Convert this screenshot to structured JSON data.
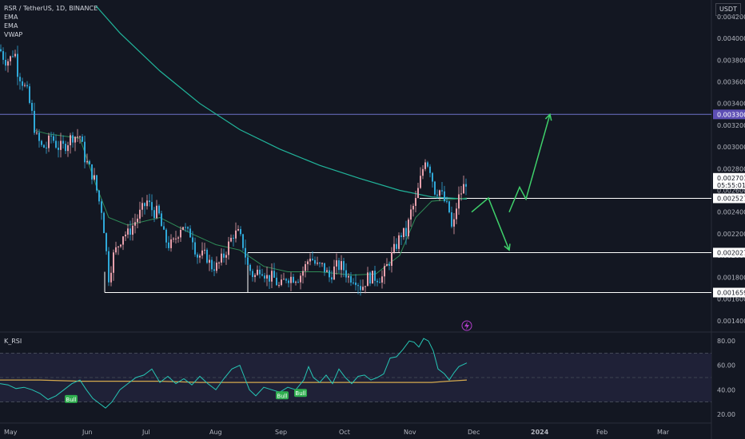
{
  "header": {
    "symbol_line": "RSR / TetherUS, 1D, BINANCE",
    "indicators": [
      "EMA",
      "EMA",
      "VWAP"
    ],
    "rsi_label": "K_RSI",
    "unit": "USDT"
  },
  "colors": {
    "background": "#131722",
    "bull": "#e8a0ac",
    "bear": "#2fa8d8",
    "ema_long": "#21b59b",
    "ema_short": "#2e8b57",
    "rsi_line": "#26c6b5",
    "rsi_ma": "#d4a94e",
    "arrow": "#3fd16b",
    "level_line": "#ffffff",
    "highlight_line": "#6c72c7",
    "highlight_tag": "#5e4fb5"
  },
  "chart_data": [
    {
      "type": "candlestick",
      "pair": "RSR / TetherUS",
      "interval": "1D",
      "exchange": "BINANCE",
      "x_tick_labels": [
        "May",
        "Jun",
        "Jul",
        "Aug",
        "Sep",
        "Oct",
        "Nov",
        "Dec",
        "2024",
        "Feb",
        "Mar"
      ],
      "y_tick_labels": [
        "0.004200",
        "0.004000",
        "0.003800",
        "0.003600",
        "0.003400",
        "0.003200",
        "0.003000",
        "0.002800",
        "0.002600",
        "0.002400",
        "0.002200",
        "0.002000",
        "0.001800",
        "0.001600",
        "0.001400"
      ],
      "ylim": [
        0.00131,
        0.00428
      ],
      "price_path": [
        [
          0,
          0.0039
        ],
        [
          6,
          0.0038
        ],
        [
          12,
          0.0038
        ],
        [
          18,
          0.0039
        ],
        [
          22,
          0.0037
        ],
        [
          28,
          0.0036
        ],
        [
          34,
          0.0035
        ],
        [
          40,
          0.0033
        ],
        [
          45,
          0.0031
        ],
        [
          52,
          0.003
        ],
        [
          58,
          0.003
        ],
        [
          64,
          0.0031
        ],
        [
          72,
          0.003
        ],
        [
          80,
          0.003
        ],
        [
          90,
          0.0031
        ],
        [
          100,
          0.0031
        ],
        [
          106,
          0.0029
        ],
        [
          112,
          0.0028
        ],
        [
          118,
          0.0027
        ],
        [
          124,
          0.0025
        ],
        [
          128,
          0.0024
        ],
        [
          132,
          0.0021
        ],
        [
          136,
          0.0018
        ],
        [
          142,
          0.002
        ],
        [
          148,
          0.0021
        ],
        [
          154,
          0.0022
        ],
        [
          160,
          0.0022
        ],
        [
          168,
          0.0023
        ],
        [
          176,
          0.0024
        ],
        [
          184,
          0.0025
        ],
        [
          192,
          0.0024
        ],
        [
          198,
          0.0024
        ],
        [
          204,
          0.0022
        ],
        [
          210,
          0.0021
        ],
        [
          216,
          0.0021
        ],
        [
          222,
          0.0022
        ],
        [
          228,
          0.0023
        ],
        [
          234,
          0.0022
        ],
        [
          240,
          0.0022
        ],
        [
          246,
          0.002
        ],
        [
          252,
          0.002
        ],
        [
          258,
          0.002
        ],
        [
          264,
          0.0019
        ],
        [
          272,
          0.0019
        ],
        [
          280,
          0.002
        ],
        [
          286,
          0.0021
        ],
        [
          292,
          0.0022
        ],
        [
          298,
          0.0022
        ],
        [
          304,
          0.0021
        ],
        [
          310,
          0.0019
        ],
        [
          318,
          0.0018
        ],
        [
          326,
          0.0019
        ],
        [
          334,
          0.0018
        ],
        [
          342,
          0.0018
        ],
        [
          350,
          0.0017
        ],
        [
          358,
          0.0018
        ],
        [
          366,
          0.0018
        ],
        [
          374,
          0.0018
        ],
        [
          382,
          0.0019
        ],
        [
          388,
          0.002
        ],
        [
          396,
          0.0019
        ],
        [
          404,
          0.0019
        ],
        [
          412,
          0.0018
        ],
        [
          420,
          0.0019
        ],
        [
          428,
          0.0019
        ],
        [
          436,
          0.0018
        ],
        [
          444,
          0.0018
        ],
        [
          452,
          0.0017
        ],
        [
          460,
          0.0018
        ],
        [
          466,
          0.0018
        ],
        [
          472,
          0.0018
        ],
        [
          478,
          0.0018
        ],
        [
          484,
          0.0019
        ],
        [
          490,
          0.002
        ],
        [
          496,
          0.0021
        ],
        [
          502,
          0.0022
        ],
        [
          508,
          0.0022
        ],
        [
          514,
          0.0024
        ],
        [
          520,
          0.0025
        ],
        [
          526,
          0.0027
        ],
        [
          532,
          0.0029
        ],
        [
          538,
          0.0028
        ],
        [
          544,
          0.0026
        ],
        [
          550,
          0.0026
        ],
        [
          556,
          0.0025
        ],
        [
          562,
          0.0024
        ],
        [
          566,
          0.0022
        ],
        [
          572,
          0.0025
        ],
        [
          578,
          0.0026
        ],
        [
          584,
          0.0027
        ]
      ],
      "ema_long_path": [
        [
          120,
          0.0043
        ],
        [
          150,
          0.00405
        ],
        [
          200,
          0.0037
        ],
        [
          250,
          0.0034
        ],
        [
          300,
          0.00316
        ],
        [
          350,
          0.00298
        ],
        [
          400,
          0.00283
        ],
        [
          450,
          0.00271
        ],
        [
          500,
          0.0026
        ],
        [
          540,
          0.00254
        ],
        [
          584,
          0.00252
        ]
      ],
      "ema_short_path": [
        [
          44,
          0.00315
        ],
        [
          60,
          0.00312
        ],
        [
          80,
          0.0031
        ],
        [
          100,
          0.00308
        ],
        [
          120,
          0.00265
        ],
        [
          136,
          0.00235
        ],
        [
          160,
          0.00228
        ],
        [
          200,
          0.00235
        ],
        [
          240,
          0.0022
        ],
        [
          270,
          0.0021
        ],
        [
          300,
          0.00205
        ],
        [
          330,
          0.0019
        ],
        [
          360,
          0.00185
        ],
        [
          400,
          0.00185
        ],
        [
          440,
          0.00182
        ],
        [
          470,
          0.00183
        ],
        [
          500,
          0.002
        ],
        [
          520,
          0.00235
        ],
        [
          540,
          0.0025
        ],
        [
          584,
          0.00253
        ]
      ],
      "horizontal_levels": [
        {
          "value": 0.0033,
          "label": "0.003300",
          "style": "highlight"
        },
        {
          "value": 0.002527,
          "label": "0.002527",
          "style": "level"
        },
        {
          "value": 0.002027,
          "label": "0.002027",
          "style": "level"
        },
        {
          "value": 0.001659,
          "label": "0.001659",
          "style": "level"
        }
      ],
      "current_price": {
        "value": 0.002701,
        "label": "0.002701",
        "countdown": "05:55:01"
      },
      "projection_arrows": [
        {
          "path": [
            [
              590,
              0.0024
            ],
            [
              611,
              0.00253
            ],
            [
              637,
              0.00205
            ]
          ],
          "head": "down"
        },
        {
          "path": [
            [
              637,
              0.0024
            ],
            [
              650,
              0.00263
            ],
            [
              658,
              0.00252
            ],
            [
              688,
              0.0033
            ]
          ],
          "head": "up"
        }
      ]
    },
    {
      "type": "line",
      "title": "K_RSI",
      "y_tick_labels": [
        "80.00",
        "60.00",
        "40.00",
        "20.00"
      ],
      "ylim": [
        14,
        86
      ],
      "levels": [
        70,
        50,
        30
      ],
      "rsi_path": [
        [
          0,
          45
        ],
        [
          10,
          44
        ],
        [
          20,
          41
        ],
        [
          30,
          42
        ],
        [
          40,
          40
        ],
        [
          50,
          37
        ],
        [
          60,
          32
        ],
        [
          70,
          35
        ],
        [
          80,
          40
        ],
        [
          90,
          45
        ],
        [
          100,
          48
        ],
        [
          108,
          40
        ],
        [
          116,
          33
        ],
        [
          124,
          29
        ],
        [
          132,
          25
        ],
        [
          140,
          30
        ],
        [
          150,
          40
        ],
        [
          160,
          45
        ],
        [
          170,
          50
        ],
        [
          180,
          52
        ],
        [
          190,
          57
        ],
        [
          200,
          46
        ],
        [
          210,
          51
        ],
        [
          220,
          45
        ],
        [
          230,
          49
        ],
        [
          240,
          44
        ],
        [
          250,
          51
        ],
        [
          260,
          45
        ],
        [
          270,
          40
        ],
        [
          280,
          49
        ],
        [
          290,
          57
        ],
        [
          300,
          60
        ],
        [
          306,
          50
        ],
        [
          312,
          40
        ],
        [
          320,
          35
        ],
        [
          330,
          42
        ],
        [
          340,
          40
        ],
        [
          350,
          38
        ],
        [
          360,
          42
        ],
        [
          370,
          40
        ],
        [
          380,
          48
        ],
        [
          386,
          59
        ],
        [
          392,
          50
        ],
        [
          400,
          46
        ],
        [
          408,
          52
        ],
        [
          416,
          45
        ],
        [
          424,
          57
        ],
        [
          432,
          50
        ],
        [
          440,
          45
        ],
        [
          448,
          51
        ],
        [
          456,
          52
        ],
        [
          464,
          48
        ],
        [
          472,
          50
        ],
        [
          480,
          53
        ],
        [
          488,
          66
        ],
        [
          496,
          67
        ],
        [
          504,
          73
        ],
        [
          512,
          80
        ],
        [
          518,
          79
        ],
        [
          524,
          75
        ],
        [
          530,
          82
        ],
        [
          536,
          80
        ],
        [
          542,
          72
        ],
        [
          548,
          57
        ],
        [
          556,
          53
        ],
        [
          562,
          48
        ],
        [
          568,
          54
        ],
        [
          574,
          59
        ],
        [
          584,
          62
        ]
      ],
      "rsi_ma_path": [
        [
          0,
          48
        ],
        [
          50,
          48
        ],
        [
          100,
          47
        ],
        [
          150,
          47
        ],
        [
          200,
          47
        ],
        [
          250,
          46
        ],
        [
          300,
          46
        ],
        [
          350,
          46
        ],
        [
          400,
          46
        ],
        [
          450,
          46
        ],
        [
          500,
          46
        ],
        [
          540,
          46
        ],
        [
          560,
          47
        ],
        [
          584,
          48
        ]
      ],
      "signals": [
        {
          "x": 89,
          "value": 37,
          "label": "Bull"
        },
        {
          "x": 353,
          "value": 40,
          "label": "Bull"
        },
        {
          "x": 376,
          "value": 42,
          "label": "Bull"
        }
      ]
    }
  ]
}
